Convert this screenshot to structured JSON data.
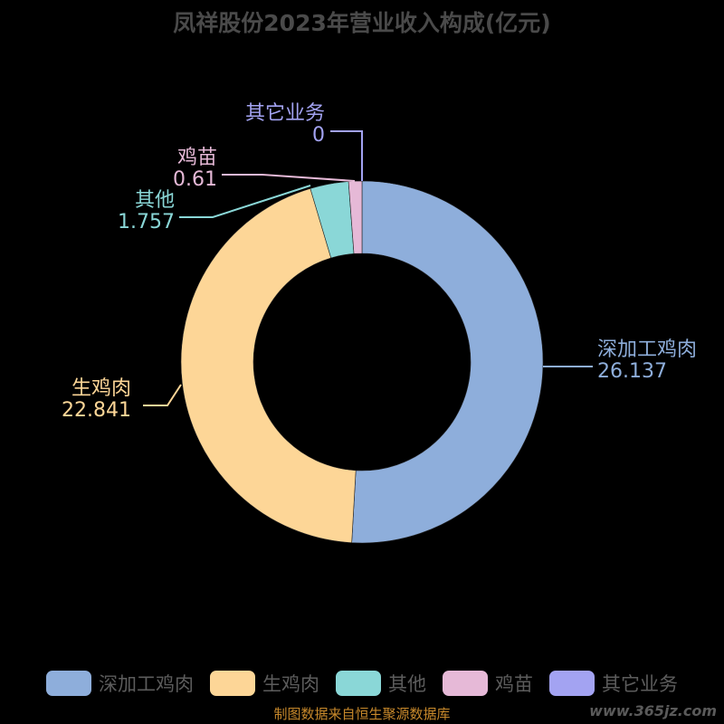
{
  "title": "凤祥股份2023年营业收入构成(亿元)",
  "source": "制图数据来自恒生聚源数据库",
  "watermark": "www.365jz.com",
  "chart_data": {
    "type": "pie",
    "variant": "donut",
    "title": "凤祥股份2023年营业收入构成(亿元)",
    "series": [
      {
        "name": "深加工鸡肉",
        "value": 26.137,
        "label": "26.137",
        "color": "#8eaedb"
      },
      {
        "name": "生鸡肉",
        "value": 22.841,
        "label": "22.841",
        "color": "#fdd697"
      },
      {
        "name": "其他",
        "value": 1.757,
        "label": "1.757",
        "color": "#8ad7d7"
      },
      {
        "name": "鸡苗",
        "value": 0.61,
        "label": "0.61",
        "color": "#e6b9d7"
      },
      {
        "name": "其它业务",
        "value": 0,
        "label": "0",
        "color": "#a3a3f2"
      }
    ],
    "legend_position": "bottom"
  }
}
